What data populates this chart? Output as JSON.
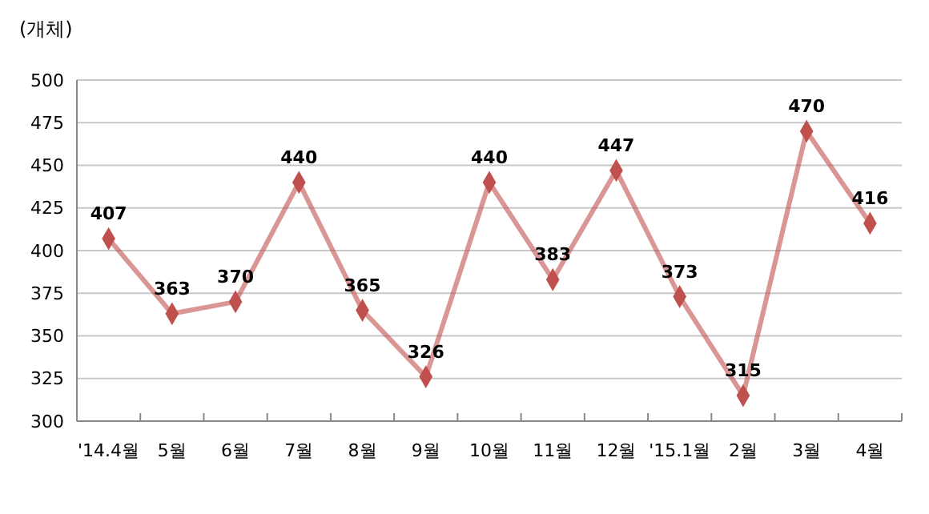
{
  "chart_data": {
    "type": "line",
    "ylabel": "(개체)",
    "categories": [
      "'14.4월",
      "5월",
      "6월",
      "7월",
      "8월",
      "9월",
      "10월",
      "11월",
      "12월",
      "'15.1월",
      "2월",
      "3월",
      "4월"
    ],
    "series": [
      {
        "color": "#c0504d",
        "values": [
          407,
          363,
          370,
          440,
          365,
          326,
          440,
          383,
          447,
          373,
          315,
          470,
          416
        ]
      }
    ],
    "ylim": [
      300,
      500
    ],
    "yticks": [
      300,
      325,
      350,
      375,
      400,
      425,
      450,
      475,
      500
    ],
    "grid": "y",
    "marker": "diamond",
    "line_style": "solid",
    "data_labels": true
  }
}
